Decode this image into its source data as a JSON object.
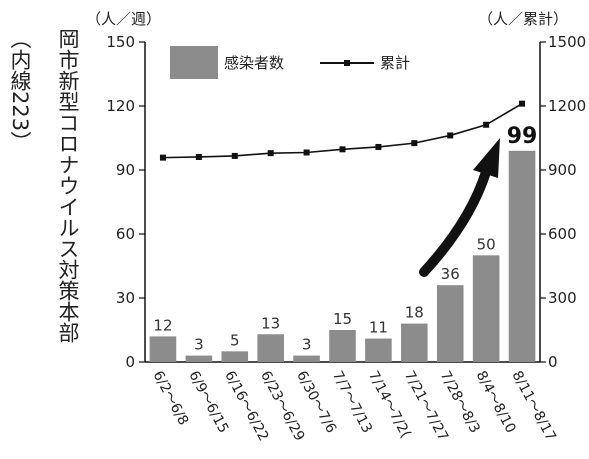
{
  "chart_data": {
    "type": "bar",
    "categories": [
      "6/2～6/8",
      "6/9～6/15",
      "6/16～6/22",
      "6/23～6/29",
      "6/30～7/6",
      "7/7～7/13",
      "7/14～7/20",
      "7/21～7/27",
      "7/28～8/3",
      "8/4～8/10",
      "8/11～8/17"
    ],
    "category_labels_display": [
      "6/2～6/8",
      "6/9～6/15",
      "6/16～6/22",
      "6/23～6/29",
      "6/30～7/6",
      "7/7～7/13",
      "7/14～7/2(",
      "7/21～7/27",
      "7/28～8/3",
      "8/4～8/10",
      "8/11～8/17"
    ],
    "series": [
      {
        "name": "感染者数",
        "type": "bar",
        "axis": "left",
        "values": [
          12,
          3,
          5,
          13,
          3,
          15,
          11,
          18,
          36,
          50,
          99
        ],
        "color": "#8c8c8c"
      },
      {
        "name": "累計",
        "type": "line",
        "axis": "right",
        "values": [
          958,
          961,
          966,
          979,
          982,
          997,
          1008,
          1026,
          1062,
          1112,
          1211
        ],
        "color": "#111111"
      }
    ],
    "data_labels": [
      "12",
      "3",
      "5",
      "13",
      "3",
      "15",
      "11",
      "18",
      "36",
      "50",
      "99"
    ],
    "highlight_index": 10,
    "y_left": {
      "unit": "（人／週）",
      "ylim": [
        0,
        150
      ],
      "ticks": [
        "0",
        "30",
        "60",
        "90",
        "120",
        "150"
      ]
    },
    "y_right": {
      "unit": "（人／累計）",
      "ylim": [
        0,
        1500
      ],
      "ticks": [
        "0",
        "300",
        "600",
        "900",
        "1200",
        "1500"
      ]
    },
    "legend": {
      "placement": "top-left",
      "bar_label": "感染者数",
      "line_label": "累計"
    },
    "grid": false,
    "annotation": "upward-arrow-icon"
  },
  "side_text": {
    "org": "岡市新型コロナウイルス対策本部",
    "ext": "（内線223）"
  }
}
